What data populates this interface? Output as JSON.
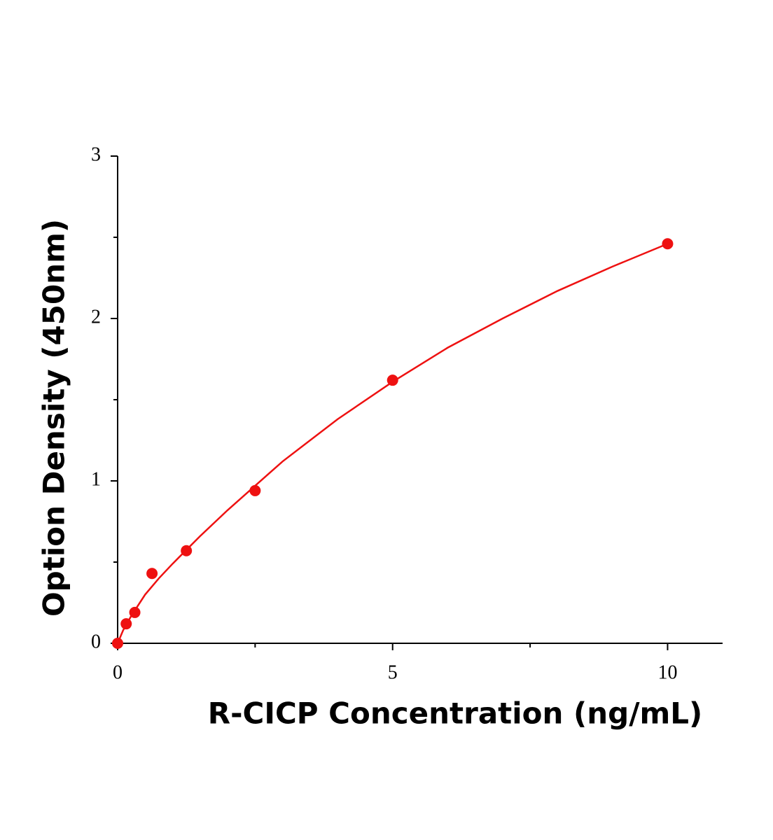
{
  "chart_data": {
    "type": "scatter",
    "x_label": "R-CICP Concentration (ng/mL)",
    "y_label": "Option Density (450nm)",
    "xlim": [
      0,
      11
    ],
    "xticks": [
      0,
      5,
      10
    ],
    "xminor": [
      2.5,
      7.5
    ],
    "ylim": [
      0,
      3
    ],
    "yticks": [
      0,
      1,
      2,
      3
    ],
    "yminor": [
      0.5,
      1.5,
      2.5
    ],
    "color": "#ee1111",
    "series": [
      {
        "x": [
          0,
          0.156,
          0.3125,
          0.625,
          1.25,
          2.5,
          5,
          10
        ],
        "values": [
          0,
          0.12,
          0.19,
          0.43,
          0.57,
          0.94,
          1.62,
          2.46
        ]
      }
    ],
    "fit": {
      "x": [
        0,
        0.1,
        0.25,
        0.5,
        0.75,
        1,
        1.5,
        2,
        2.5,
        3,
        4,
        5,
        6,
        7,
        8,
        9,
        10
      ],
      "values": [
        0,
        0.08,
        0.17,
        0.3,
        0.4,
        0.49,
        0.66,
        0.82,
        0.97,
        1.12,
        1.38,
        1.61,
        1.82,
        2.0,
        2.17,
        2.32,
        2.46
      ]
    }
  }
}
